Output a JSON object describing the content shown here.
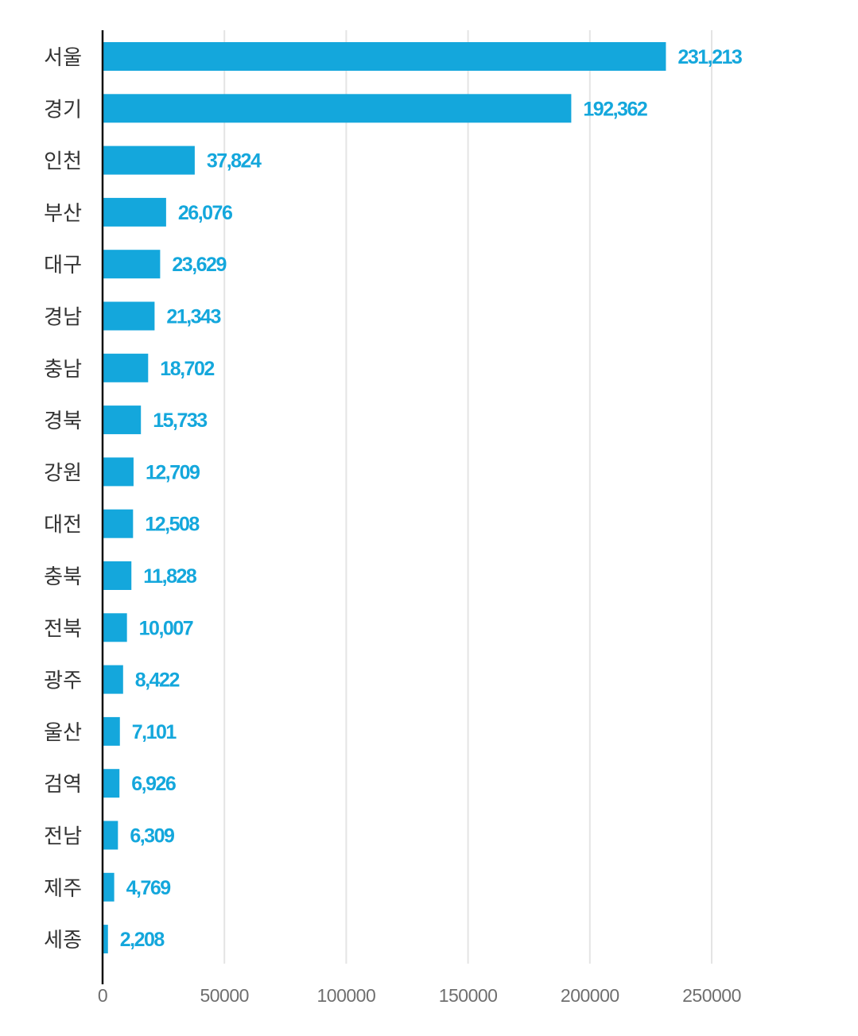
{
  "chart_data": {
    "type": "bar",
    "orientation": "horizontal",
    "title": "",
    "xlabel": "",
    "ylabel": "",
    "xlim": [
      0,
      250000
    ],
    "ticks": [
      {
        "value": 0,
        "label": "0"
      },
      {
        "value": 50000,
        "label": "50000"
      },
      {
        "value": 100000,
        "label": "100000"
      },
      {
        "value": 150000,
        "label": "150000"
      },
      {
        "value": 200000,
        "label": "200000"
      },
      {
        "value": 250000,
        "label": "250000"
      }
    ],
    "grid": true,
    "bar_color": "#14a7dc",
    "label_color": "#14a7dc",
    "data": [
      {
        "category": "서울",
        "value": 231213,
        "label": "231,213"
      },
      {
        "category": "경기",
        "value": 192362,
        "label": "192,362"
      },
      {
        "category": "인천",
        "value": 37824,
        "label": "37,824"
      },
      {
        "category": "부산",
        "value": 26076,
        "label": "26,076"
      },
      {
        "category": "대구",
        "value": 23629,
        "label": "23,629"
      },
      {
        "category": "경남",
        "value": 21343,
        "label": "21,343"
      },
      {
        "category": "충남",
        "value": 18702,
        "label": "18,702"
      },
      {
        "category": "경북",
        "value": 15733,
        "label": "15,733"
      },
      {
        "category": "강원",
        "value": 12709,
        "label": "12,709"
      },
      {
        "category": "대전",
        "value": 12508,
        "label": "12,508"
      },
      {
        "category": "충북",
        "value": 11828,
        "label": "11,828"
      },
      {
        "category": "전북",
        "value": 10007,
        "label": "10,007"
      },
      {
        "category": "광주",
        "value": 8422,
        "label": "8,422"
      },
      {
        "category": "울산",
        "value": 7101,
        "label": "7,101"
      },
      {
        "category": "검역",
        "value": 6926,
        "label": "6,926"
      },
      {
        "category": "전남",
        "value": 6309,
        "label": "6,309"
      },
      {
        "category": "제주",
        "value": 4769,
        "label": "4,769"
      },
      {
        "category": "세종",
        "value": 2208,
        "label": "2,208"
      }
    ]
  }
}
